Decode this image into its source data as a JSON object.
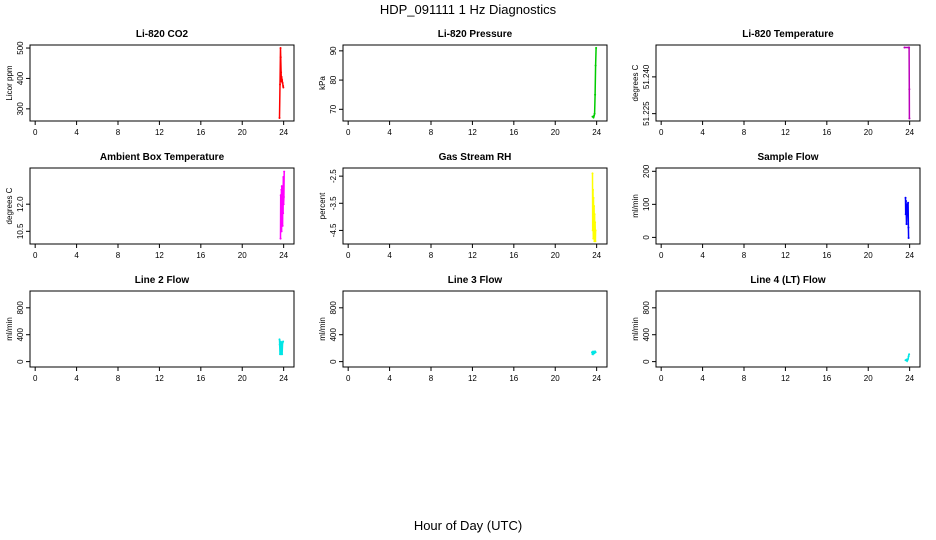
{
  "title": "HDP_091111  1 Hz Diagnostics",
  "xlabel": "Hour of Day (UTC)",
  "chart_data": [
    {
      "type": "line",
      "title": "Li-820 CO2",
      "ylabel": "Licor ppm",
      "xlim": [
        -0.5,
        25
      ],
      "ylim": [
        260,
        510
      ],
      "xticks": [
        "0",
        "4",
        "8",
        "12",
        "16",
        "20",
        "24"
      ],
      "yticks": [
        "300",
        "400",
        "500"
      ],
      "color": "#ff0000",
      "series": [
        {
          "x": [
            23.6,
            23.65,
            23.7,
            23.72,
            23.75,
            23.78,
            23.8,
            23.85,
            23.9,
            23.95,
            23.97
          ],
          "y": [
            270,
            380,
            500,
            470,
            420,
            390,
            405,
            395,
            385,
            375,
            370
          ]
        }
      ]
    },
    {
      "type": "line",
      "title": "Li-820 Pressure",
      "ylabel": "kPa",
      "xlim": [
        -0.5,
        25
      ],
      "ylim": [
        66,
        92
      ],
      "xticks": [
        "0",
        "4",
        "8",
        "12",
        "16",
        "20",
        "24"
      ],
      "yticks": [
        "70",
        "80",
        "90"
      ],
      "color": "#00cc00",
      "series": [
        {
          "x": [
            23.6,
            23.7,
            23.75,
            23.8,
            23.85,
            23.9,
            23.95
          ],
          "y": [
            67.5,
            67.2,
            67.8,
            68.5,
            75,
            85,
            91
          ]
        }
      ]
    },
    {
      "type": "line",
      "title": "Li-820 Temperature",
      "ylabel": "degrees C",
      "xlim": [
        -0.5,
        25
      ],
      "ylim": [
        51.222,
        51.253
      ],
      "xticks": [
        "0",
        "4",
        "8",
        "12",
        "16",
        "20",
        "24"
      ],
      "yticks": [
        "51.225",
        "51.240"
      ],
      "color": "#bb00bb",
      "series": [
        {
          "x": [
            23.5,
            23.9,
            23.95,
            23.97,
            23.98
          ],
          "y": [
            51.252,
            51.252,
            51.252,
            51.235,
            51.223
          ]
        }
      ]
    },
    {
      "type": "line",
      "title": "Ambient Box Temperature",
      "ylabel": "degrees C",
      "xlim": [
        -0.5,
        25
      ],
      "ylim": [
        9.8,
        14
      ],
      "xticks": [
        "0",
        "4",
        "8",
        "12",
        "16",
        "20",
        "24"
      ],
      "yticks": [
        "10.5",
        "12.0"
      ],
      "color": "#ff00ff",
      "series": [
        {
          "x": [
            23.7,
            23.72,
            23.75,
            23.78,
            23.8,
            23.82,
            23.85,
            23.88,
            23.9,
            23.92,
            23.95,
            23.97,
            24.0,
            24.02,
            24.05
          ],
          "y": [
            10.1,
            12.5,
            11,
            12.8,
            10.5,
            13,
            11.2,
            12.6,
            10.8,
            12.9,
            11.5,
            13.5,
            12,
            12.4,
            13.8
          ]
        }
      ]
    },
    {
      "type": "line",
      "title": "Gas Stream RH",
      "ylabel": "percent",
      "xlim": [
        -0.5,
        25
      ],
      "ylim": [
        -5.0,
        -2.2
      ],
      "xticks": [
        "0",
        "4",
        "8",
        "12",
        "16",
        "20",
        "24"
      ],
      "yticks": [
        "-4.5",
        "-3.5",
        "-2.5"
      ],
      "color": "#ffff00",
      "series": [
        {
          "x": [
            23.6,
            23.62,
            23.65,
            23.68,
            23.7,
            23.72,
            23.75,
            23.78,
            23.8,
            23.82,
            23.85,
            23.88,
            23.9
          ],
          "y": [
            -2.4,
            -4.5,
            -3.0,
            -4.8,
            -3.3,
            -4.6,
            -3.6,
            -4.9,
            -3.9,
            -4.7,
            -4.2,
            -4.9,
            -4.5
          ]
        }
      ]
    },
    {
      "type": "line",
      "title": "Sample Flow",
      "ylabel": "ml/min",
      "xlim": [
        -0.5,
        25
      ],
      "ylim": [
        -20,
        210
      ],
      "xticks": [
        "0",
        "4",
        "8",
        "12",
        "16",
        "20",
        "24"
      ],
      "yticks": [
        "0",
        "100",
        "200"
      ],
      "color": "#0000ff",
      "series": [
        {
          "x": [
            23.6,
            23.62,
            23.65,
            23.7,
            23.75,
            23.8,
            23.85,
            23.88,
            23.9
          ],
          "y": [
            120,
            70,
            110,
            40,
            100,
            90,
            105,
            30,
            -2
          ]
        }
      ]
    },
    {
      "type": "line",
      "title": "Line 2 Flow",
      "ylabel": "ml/min",
      "xlim": [
        -0.5,
        25
      ],
      "ylim": [
        -80,
        1050
      ],
      "xticks": [
        "0",
        "4",
        "8",
        "12",
        "16",
        "20",
        "24"
      ],
      "yticks": [
        "0",
        "400",
        "800"
      ],
      "color": "#00e5e5",
      "series": [
        {
          "x": [
            23.6,
            23.62,
            23.65,
            23.7,
            23.75,
            23.8,
            23.85,
            23.9,
            23.95
          ],
          "y": [
            330,
            250,
            110,
            300,
            110,
            290,
            110,
            280,
            300
          ]
        }
      ]
    },
    {
      "type": "line",
      "title": "Line 3 Flow",
      "ylabel": "ml/min",
      "xlim": [
        -0.5,
        25
      ],
      "ylim": [
        -80,
        1050
      ],
      "xticks": [
        "0",
        "4",
        "8",
        "12",
        "16",
        "20",
        "24"
      ],
      "yticks": [
        "0",
        "400",
        "800"
      ],
      "color": "#00e5e5",
      "series": [
        {
          "x": [
            23.55,
            23.6,
            23.65,
            23.7,
            23.75,
            23.8,
            23.85,
            23.9
          ],
          "y": [
            140,
            110,
            150,
            120,
            140,
            130,
            150,
            140
          ]
        }
      ]
    },
    {
      "type": "line",
      "title": "Line 4 (LT) Flow",
      "ylabel": "ml/min",
      "xlim": [
        -0.5,
        25
      ],
      "ylim": [
        -80,
        1050
      ],
      "xticks": [
        "0",
        "4",
        "8",
        "12",
        "16",
        "20",
        "24"
      ],
      "yticks": [
        "0",
        "400",
        "800"
      ],
      "color": "#00e5e5",
      "series": [
        {
          "x": [
            23.6,
            23.7,
            23.75,
            23.8,
            23.85,
            23.9,
            23.95
          ],
          "y": [
            20,
            30,
            10,
            25,
            40,
            80,
            110
          ]
        }
      ]
    }
  ]
}
